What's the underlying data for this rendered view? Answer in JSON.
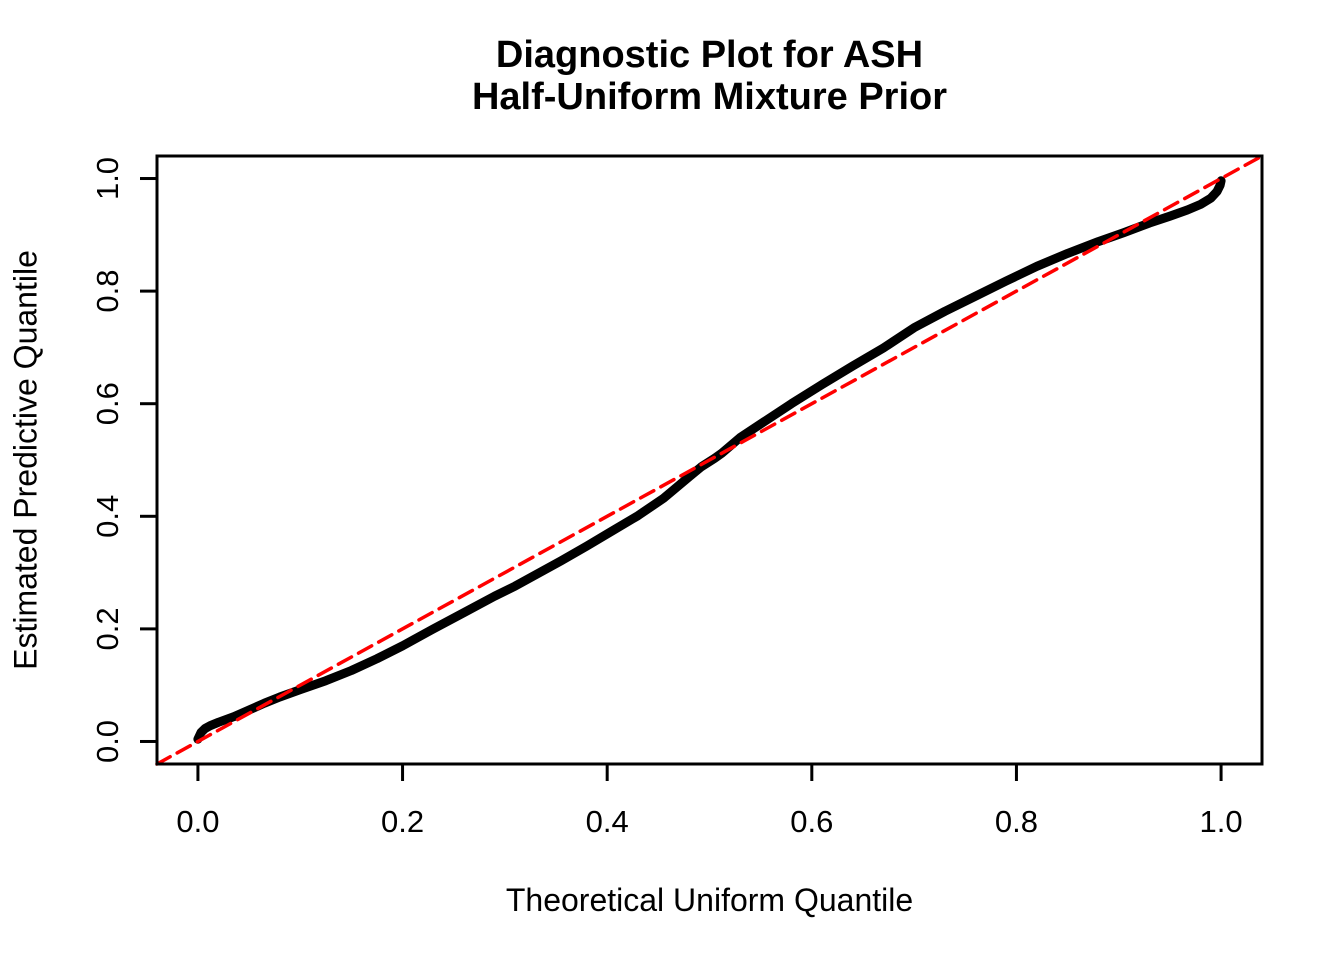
{
  "figure": {
    "background": "#FFFFFF",
    "text_color": "#000000"
  },
  "chart_data": {
    "type": "line",
    "title": "Diagnostic Plot for ASH\nHalf-Uniform Mixture Prior",
    "title_lines": [
      "Diagnostic Plot for ASH",
      "Half-Uniform Mixture Prior"
    ],
    "xlabel": "Theoretical Uniform Quantile",
    "ylabel": "Estimated Predictive Quantile",
    "xlim": [
      -0.04,
      1.04
    ],
    "ylim": [
      -0.04,
      1.04
    ],
    "grid": false,
    "legend": null,
    "xticks": {
      "values": [
        0.0,
        0.2,
        0.4,
        0.6,
        0.8,
        1.0
      ],
      "labels": [
        "0.0",
        "0.2",
        "0.4",
        "0.6",
        "0.8",
        "1.0"
      ]
    },
    "yticks": {
      "values": [
        0.0,
        0.2,
        0.4,
        0.6,
        0.8,
        1.0
      ],
      "labels": [
        "0.0",
        "0.2",
        "0.4",
        "0.6",
        "0.8",
        "1.0"
      ]
    },
    "series": [
      {
        "name": "estimated-vs-theoretical-quantiles",
        "kind": "thick-point-curve",
        "color": "#000000",
        "stroke_width": 9,
        "dash": null,
        "x": [
          0.0,
          0.003,
          0.007,
          0.012,
          0.02,
          0.035,
          0.05,
          0.065,
          0.08,
          0.1,
          0.125,
          0.15,
          0.175,
          0.2,
          0.23,
          0.26,
          0.29,
          0.31,
          0.33,
          0.355,
          0.38,
          0.405,
          0.43,
          0.455,
          0.48,
          0.492,
          0.505,
          0.512,
          0.53,
          0.555,
          0.58,
          0.61,
          0.64,
          0.67,
          0.7,
          0.73,
          0.76,
          0.79,
          0.82,
          0.85,
          0.88,
          0.905,
          0.93,
          0.95,
          0.967,
          0.98,
          0.99,
          0.996,
          0.999,
          1.0
        ],
        "y": [
          0.004,
          0.016,
          0.023,
          0.028,
          0.034,
          0.044,
          0.056,
          0.068,
          0.079,
          0.092,
          0.108,
          0.126,
          0.147,
          0.17,
          0.2,
          0.229,
          0.258,
          0.276,
          0.296,
          0.321,
          0.347,
          0.374,
          0.401,
          0.432,
          0.47,
          0.488,
          0.503,
          0.512,
          0.54,
          0.57,
          0.6,
          0.634,
          0.667,
          0.699,
          0.735,
          0.764,
          0.791,
          0.818,
          0.844,
          0.867,
          0.888,
          0.904,
          0.921,
          0.933,
          0.944,
          0.954,
          0.965,
          0.977,
          0.988,
          0.996
        ]
      },
      {
        "name": "identity-reference-line",
        "kind": "dashed-line",
        "color": "#FF0000",
        "stroke_width": 3.5,
        "dash": [
          15,
          8
        ],
        "x": [
          -0.04,
          1.04
        ],
        "y": [
          -0.04,
          1.04
        ]
      }
    ]
  }
}
